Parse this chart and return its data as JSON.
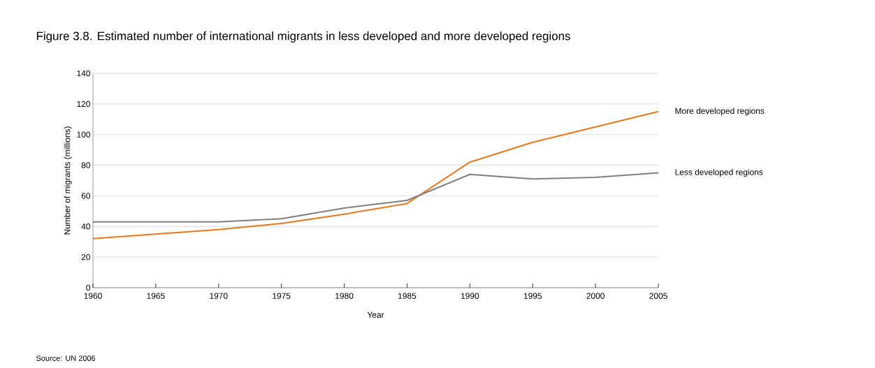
{
  "chart_data": {
    "type": "line",
    "title": "Figure 3.8. Estimated number of international migrants in less developed and more developed regions",
    "xlabel": "Year",
    "ylabel": "Number of migrants (millions)",
    "x": [
      1960,
      1970,
      1975,
      1980,
      1985,
      1990,
      1995,
      2000,
      2005
    ],
    "series": [
      {
        "name": "More developed regions",
        "color": "#e8781e",
        "values": [
          32,
          38,
          42,
          48,
          55,
          82,
          95,
          105,
          115
        ]
      },
      {
        "name": "Less developed regions",
        "color": "#7f7f7f",
        "values": [
          43,
          43,
          45,
          52,
          57,
          74,
          71,
          72,
          75
        ]
      }
    ],
    "xlim": [
      1960,
      2005
    ],
    "xticks": [
      1960,
      1965,
      1970,
      1975,
      1980,
      1985,
      1990,
      1995,
      2000,
      2005
    ],
    "ylim": [
      0,
      140
    ],
    "yticks": [
      0,
      20,
      40,
      60,
      80,
      100,
      120,
      140
    ],
    "grid": "y",
    "marker": "none",
    "line_style": "solid",
    "annotations": [
      "Source: UN 2006"
    ]
  }
}
